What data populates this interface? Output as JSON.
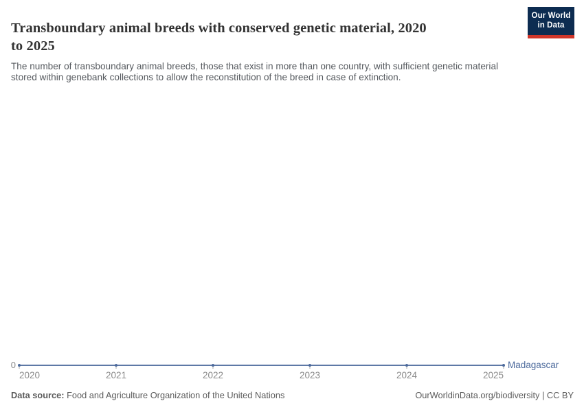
{
  "header": {
    "title_lines": [
      "Transboundary animal breeds with conserved genetic material, 2020",
      "to 2025"
    ],
    "subtitle_lines": [
      "The number of transboundary animal breeds, those that exist in more than one country, with sufficient genetic material",
      "stored within genebank collections to allow the reconstitution of the breed in case of extinction."
    ],
    "logo": {
      "line1": "Our World",
      "line2": "in Data",
      "bg_color": "#0d2c51",
      "accent_color": "#d0362a"
    }
  },
  "chart_data": {
    "type": "line",
    "title": "Transboundary animal breeds with conserved genetic material, 2020 to 2025",
    "x": [
      2020,
      2021,
      2022,
      2023,
      2024,
      2025
    ],
    "series": [
      {
        "name": "Madagascar",
        "values": [
          0,
          0,
          0,
          0,
          0,
          0
        ],
        "color": "#4c6a9c"
      }
    ],
    "xlabel": "",
    "ylabel": "",
    "y_ticks": [
      "0"
    ],
    "ylim": [
      0,
      0
    ],
    "xlim": [
      2020,
      2025
    ],
    "grid": false,
    "legend_position": "end-of-line"
  },
  "footer": {
    "source_label": "Data source:",
    "source_text": " Food and Agriculture Organization of the United Nations",
    "right_text": "OurWorldinData.org/biodiversity | CC BY"
  }
}
